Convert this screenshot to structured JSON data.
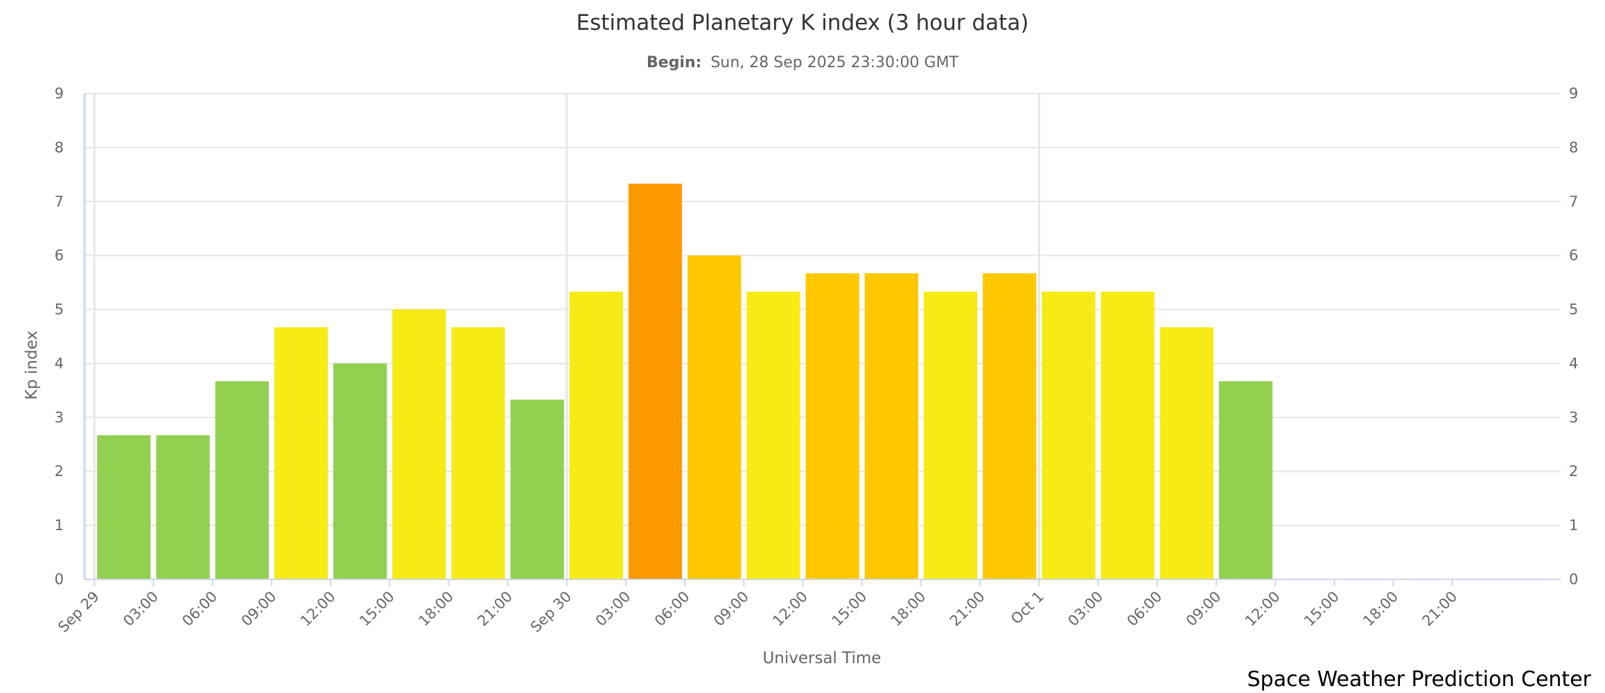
{
  "chart_data": {
    "type": "bar",
    "title": "Estimated Planetary K index (3 hour data)",
    "subtitle_label": "Begin:",
    "subtitle_value": "Sun, 28 Sep 2025 23:30:00 GMT",
    "ylabel": "Kp index",
    "xlabel": "Universal Time",
    "credit": "Space Weather Prediction Center",
    "ylim": [
      0,
      9
    ],
    "yticks": [
      "0",
      "1",
      "2",
      "3",
      "4",
      "5",
      "6",
      "7",
      "8",
      "9"
    ],
    "xlim_hours": [
      -0.5,
      74.5
    ],
    "xticks": [
      {
        "hour": 0,
        "label": "Sep 29"
      },
      {
        "hour": 3,
        "label": "03:00"
      },
      {
        "hour": 6,
        "label": "06:00"
      },
      {
        "hour": 9,
        "label": "09:00"
      },
      {
        "hour": 12,
        "label": "12:00"
      },
      {
        "hour": 15,
        "label": "15:00"
      },
      {
        "hour": 18,
        "label": "18:00"
      },
      {
        "hour": 21,
        "label": "21:00"
      },
      {
        "hour": 24,
        "label": "Sep 30"
      },
      {
        "hour": 27,
        "label": "03:00"
      },
      {
        "hour": 30,
        "label": "06:00"
      },
      {
        "hour": 33,
        "label": "09:00"
      },
      {
        "hour": 36,
        "label": "12:00"
      },
      {
        "hour": 39,
        "label": "15:00"
      },
      {
        "hour": 42,
        "label": "18:00"
      },
      {
        "hour": 45,
        "label": "21:00"
      },
      {
        "hour": 48,
        "label": "Oct 1"
      },
      {
        "hour": 51,
        "label": "03:00"
      },
      {
        "hour": 54,
        "label": "06:00"
      },
      {
        "hour": 57,
        "label": "09:00"
      },
      {
        "hour": 60,
        "label": "12:00"
      },
      {
        "hour": 63,
        "label": "15:00"
      },
      {
        "hour": 66,
        "label": "18:00"
      },
      {
        "hour": 69,
        "label": "21:00"
      }
    ],
    "day_gridlines_hours": [
      0,
      24,
      48
    ],
    "bar_span_hours": 3,
    "series": [
      {
        "name": "Kp",
        "points": [
          {
            "start_hour": 0,
            "value": 2.67,
            "color": "#92d050"
          },
          {
            "start_hour": 3,
            "value": 2.67,
            "color": "#92d050"
          },
          {
            "start_hour": 6,
            "value": 3.67,
            "color": "#92d050"
          },
          {
            "start_hour": 9,
            "value": 4.67,
            "color": "#f6eb14"
          },
          {
            "start_hour": 12,
            "value": 4.0,
            "color": "#92d050"
          },
          {
            "start_hour": 15,
            "value": 5.0,
            "color": "#f6eb14"
          },
          {
            "start_hour": 18,
            "value": 4.67,
            "color": "#f6eb14"
          },
          {
            "start_hour": 21,
            "value": 3.33,
            "color": "#92d050"
          },
          {
            "start_hour": 24,
            "value": 5.33,
            "color": "#f6eb14"
          },
          {
            "start_hour": 27,
            "value": 7.33,
            "color": "#ff9900"
          },
          {
            "start_hour": 30,
            "value": 6.0,
            "color": "#ffc800"
          },
          {
            "start_hour": 33,
            "value": 5.33,
            "color": "#f6eb14"
          },
          {
            "start_hour": 36,
            "value": 5.67,
            "color": "#ffc800"
          },
          {
            "start_hour": 39,
            "value": 5.67,
            "color": "#ffc800"
          },
          {
            "start_hour": 42,
            "value": 5.33,
            "color": "#f6eb14"
          },
          {
            "start_hour": 45,
            "value": 5.67,
            "color": "#ffc800"
          },
          {
            "start_hour": 48,
            "value": 5.33,
            "color": "#f6eb14"
          },
          {
            "start_hour": 51,
            "value": 5.33,
            "color": "#f6eb14"
          },
          {
            "start_hour": 54,
            "value": 4.67,
            "color": "#f6eb14"
          },
          {
            "start_hour": 57,
            "value": 3.67,
            "color": "#92d050"
          }
        ]
      }
    ]
  }
}
